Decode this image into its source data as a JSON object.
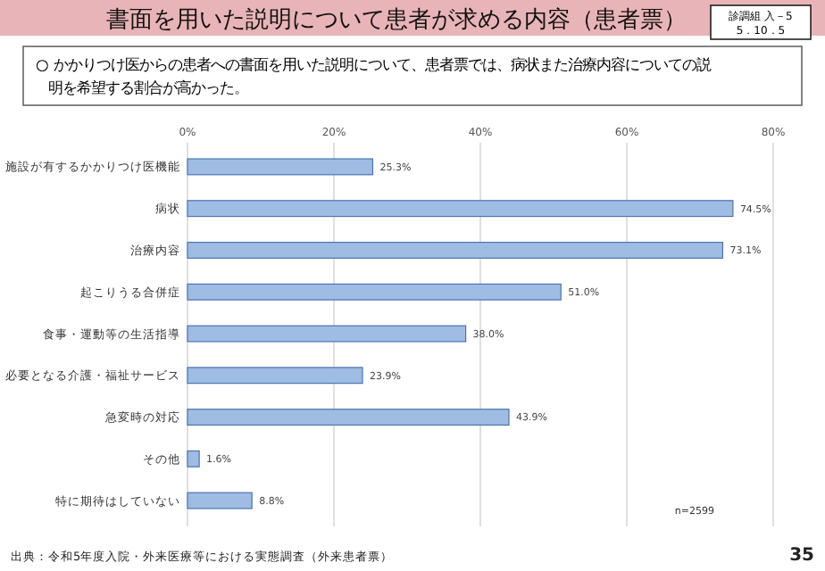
{
  "chart_data": {
    "type": "bar",
    "orientation": "horizontal",
    "title": "書面を用いた説明について患者が求める内容（患者票）",
    "subtitle": "○ かかりつけ医からの患者への書面を用いた説明について、患者票では、病状また治療内容についての説明を希望する割合が高かった。",
    "categories": [
      "施設が有するかかりつけ医機能",
      "病状",
      "治療内容",
      "起こりうる合併症",
      "食事・運動等の生活指導",
      "必要となる介護・福祉サービス",
      "急変時の対応",
      "その他",
      "特に期待はしていない"
    ],
    "values": [
      25.3,
      74.5,
      73.1,
      51.0,
      38.0,
      23.9,
      43.9,
      1.6,
      8.8
    ],
    "value_labels": [
      "25.3%",
      "74.5%",
      "73.1%",
      "51.0%",
      "38.0%",
      "23.9%",
      "43.9%",
      "1.6%",
      "8.8%"
    ],
    "color": "#9fbce3",
    "xlim": [
      0,
      80
    ],
    "xticks": [
      {
        "value": 0,
        "label": "0%"
      },
      {
        "value": 20,
        "label": "20%"
      },
      {
        "value": 40,
        "label": "40%"
      },
      {
        "value": 60,
        "label": "60%"
      },
      {
        "value": 80,
        "label": "80%"
      }
    ],
    "grid": "x",
    "annotations": [
      "診調組 入－5",
      "5．10．5",
      "n=2599",
      "出典：令和5年度入院・外来医療等における実態調査（外来患者票）",
      "35"
    ]
  }
}
